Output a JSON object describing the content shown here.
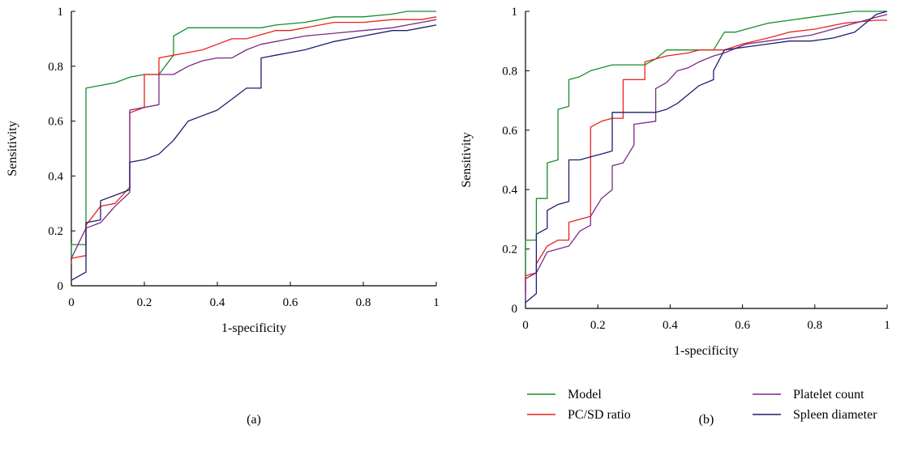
{
  "chart_data": [
    {
      "type": "line",
      "panel_label": "(a)",
      "xlabel": "1-specificity",
      "ylabel": "Sensitivity",
      "xlim": [
        0,
        1
      ],
      "ylim": [
        0,
        1
      ],
      "xticks": [
        "0",
        "0.2",
        "0.4",
        "0.6",
        "0.8",
        "1"
      ],
      "yticks": [
        "0",
        "0.2",
        "0.4",
        "0.6",
        "0.8",
        "1"
      ],
      "grid": false,
      "series": [
        {
          "name": "Model",
          "color": "#1a8c2e",
          "x": [
            0,
            0,
            0.04,
            0.04,
            0.04,
            0.08,
            0.12,
            0.16,
            0.2,
            0.24,
            0.28,
            0.28,
            0.32,
            0.36,
            0.52,
            0.56,
            0.64,
            0.72,
            0.8,
            0.88,
            0.92,
            1
          ],
          "y": [
            0.09,
            0.15,
            0.15,
            0.35,
            0.72,
            0.73,
            0.74,
            0.76,
            0.77,
            0.77,
            0.84,
            0.91,
            0.94,
            0.94,
            0.94,
            0.95,
            0.96,
            0.98,
            0.98,
            0.99,
            1,
            1
          ]
        },
        {
          "name": "PC/SD ratio",
          "color": "#e8231d",
          "x": [
            0,
            0,
            0.04,
            0.04,
            0.08,
            0.12,
            0.16,
            0.16,
            0.2,
            0.2,
            0.24,
            0.24,
            0.28,
            0.32,
            0.36,
            0.4,
            0.44,
            0.48,
            0.56,
            0.6,
            0.64,
            0.72,
            0.8,
            0.88,
            0.96,
            1
          ],
          "y": [
            0.08,
            0.1,
            0.11,
            0.22,
            0.29,
            0.3,
            0.36,
            0.63,
            0.65,
            0.77,
            0.77,
            0.83,
            0.84,
            0.85,
            0.86,
            0.88,
            0.9,
            0.9,
            0.93,
            0.93,
            0.94,
            0.96,
            0.96,
            0.97,
            0.97,
            0.98
          ]
        },
        {
          "name": "Platelet count",
          "color": "#7a2a86",
          "x": [
            0,
            0,
            0.04,
            0.08,
            0.12,
            0.16,
            0.16,
            0.2,
            0.24,
            0.24,
            0.28,
            0.32,
            0.36,
            0.4,
            0.44,
            0.48,
            0.52,
            0.56,
            0.6,
            0.64,
            0.72,
            0.8,
            0.88,
            0.96,
            1
          ],
          "y": [
            0.09,
            0.1,
            0.21,
            0.23,
            0.29,
            0.34,
            0.64,
            0.65,
            0.66,
            0.77,
            0.77,
            0.8,
            0.82,
            0.83,
            0.83,
            0.86,
            0.88,
            0.89,
            0.9,
            0.91,
            0.92,
            0.93,
            0.94,
            0.96,
            0.97
          ]
        },
        {
          "name": "Spleen diameter",
          "color": "#1b1f6e",
          "x": [
            0,
            0.04,
            0.04,
            0.08,
            0.08,
            0.16,
            0.16,
            0.2,
            0.24,
            0.28,
            0.32,
            0.36,
            0.4,
            0.44,
            0.48,
            0.52,
            0.52,
            0.56,
            0.6,
            0.64,
            0.72,
            0.8,
            0.88,
            0.92,
            0.96,
            1
          ],
          "y": [
            0.02,
            0.05,
            0.23,
            0.24,
            0.31,
            0.35,
            0.45,
            0.46,
            0.48,
            0.53,
            0.6,
            0.62,
            0.64,
            0.68,
            0.72,
            0.72,
            0.83,
            0.84,
            0.85,
            0.86,
            0.89,
            0.91,
            0.93,
            0.93,
            0.94,
            0.95
          ]
        }
      ]
    },
    {
      "type": "line",
      "panel_label": "(b)",
      "xlabel": "1-specificity",
      "ylabel": "Sensitivity",
      "xlim": [
        0,
        1
      ],
      "ylim": [
        0,
        1
      ],
      "xticks": [
        "0",
        "0.2",
        "0.4",
        "0.6",
        "0.8",
        "1"
      ],
      "yticks": [
        "0",
        "0.2",
        "0.4",
        "0.6",
        "0.8",
        "1"
      ],
      "grid": false,
      "legend_position": "bottom",
      "series": [
        {
          "name": "Model",
          "color": "#1a8c2e",
          "x": [
            0,
            0,
            0.03,
            0.03,
            0.06,
            0.06,
            0.09,
            0.09,
            0.12,
            0.12,
            0.15,
            0.18,
            0.21,
            0.24,
            0.27,
            0.33,
            0.36,
            0.39,
            0.45,
            0.52,
            0.55,
            0.58,
            0.61,
            0.67,
            0.73,
            0.79,
            0.85,
            0.91,
            1
          ],
          "y": [
            0.1,
            0.23,
            0.23,
            0.37,
            0.37,
            0.49,
            0.5,
            0.67,
            0.68,
            0.77,
            0.78,
            0.8,
            0.81,
            0.82,
            0.82,
            0.82,
            0.84,
            0.87,
            0.87,
            0.87,
            0.93,
            0.93,
            0.94,
            0.96,
            0.97,
            0.98,
            0.99,
            1,
            1
          ]
        },
        {
          "name": "PC/SD ratio",
          "color": "#e8231d",
          "x": [
            0,
            0,
            0.03,
            0.03,
            0.06,
            0.09,
            0.12,
            0.12,
            0.15,
            0.18,
            0.18,
            0.21,
            0.24,
            0.27,
            0.27,
            0.33,
            0.33,
            0.36,
            0.39,
            0.45,
            0.48,
            0.55,
            0.6,
            0.67,
            0.73,
            0.8,
            0.88,
            0.97,
            1
          ],
          "y": [
            0.05,
            0.11,
            0.12,
            0.15,
            0.21,
            0.23,
            0.23,
            0.29,
            0.3,
            0.31,
            0.61,
            0.63,
            0.64,
            0.64,
            0.77,
            0.77,
            0.83,
            0.84,
            0.85,
            0.86,
            0.87,
            0.87,
            0.89,
            0.91,
            0.93,
            0.94,
            0.96,
            0.97,
            0.97
          ]
        },
        {
          "name": "Platelet count",
          "color": "#7a2a86",
          "x": [
            0,
            0,
            0.03,
            0.06,
            0.09,
            0.12,
            0.15,
            0.18,
            0.18,
            0.21,
            0.24,
            0.24,
            0.27,
            0.3,
            0.3,
            0.36,
            0.36,
            0.39,
            0.42,
            0.45,
            0.48,
            0.52,
            0.55,
            0.61,
            0.67,
            0.73,
            0.79,
            0.85,
            0.91,
            0.97,
            1
          ],
          "y": [
            0.02,
            0.1,
            0.12,
            0.19,
            0.2,
            0.21,
            0.26,
            0.28,
            0.31,
            0.37,
            0.4,
            0.48,
            0.49,
            0.55,
            0.62,
            0.63,
            0.74,
            0.76,
            0.8,
            0.81,
            0.83,
            0.85,
            0.86,
            0.89,
            0.9,
            0.91,
            0.92,
            0.94,
            0.96,
            0.98,
            0.99
          ]
        },
        {
          "name": "Spleen diameter",
          "color": "#1b1f6e",
          "x": [
            0,
            0.03,
            0.03,
            0.06,
            0.06,
            0.09,
            0.12,
            0.12,
            0.15,
            0.18,
            0.21,
            0.24,
            0.24,
            0.27,
            0.33,
            0.36,
            0.39,
            0.42,
            0.45,
            0.48,
            0.52,
            0.52,
            0.55,
            0.61,
            0.67,
            0.73,
            0.79,
            0.85,
            0.91,
            0.97,
            1
          ],
          "y": [
            0.02,
            0.05,
            0.25,
            0.27,
            0.33,
            0.35,
            0.36,
            0.5,
            0.5,
            0.51,
            0.52,
            0.53,
            0.66,
            0.66,
            0.66,
            0.66,
            0.67,
            0.69,
            0.72,
            0.75,
            0.77,
            0.8,
            0.87,
            0.88,
            0.89,
            0.9,
            0.9,
            0.91,
            0.93,
            0.99,
            1
          ]
        }
      ]
    }
  ],
  "legend": [
    {
      "label": "Model",
      "color": "#1a8c2e"
    },
    {
      "label": "PC/SD ratio",
      "color": "#e8231d"
    },
    {
      "label": "Platelet count",
      "color": "#7a2a86"
    },
    {
      "label": "Spleen diameter",
      "color": "#1b1f6e"
    }
  ]
}
